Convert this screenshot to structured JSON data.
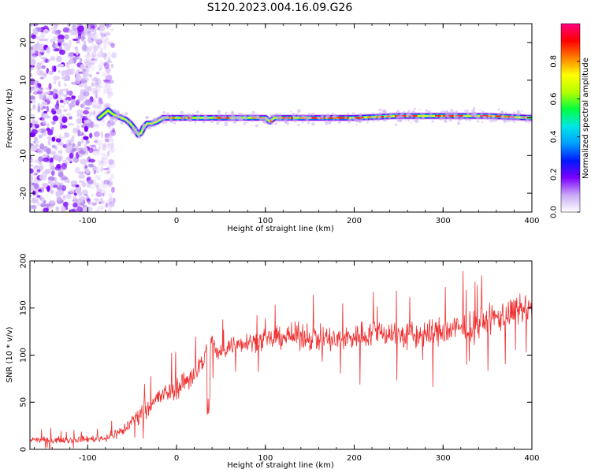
{
  "figure": {
    "title": "S120.2023.004.16.09.G26"
  },
  "chart_data": [
    {
      "type": "heatmap",
      "xlabel": "Height of straight line (km)",
      "ylabel": "Frequency (Hz)",
      "xlim": [
        -165,
        400
      ],
      "ylim": [
        -25,
        25
      ],
      "xticks": [
        -100,
        0,
        100,
        200,
        300,
        400
      ],
      "yticks": [
        -20,
        -10,
        0,
        10,
        20
      ],
      "colorbar": {
        "label": "Normalized spectral amplitude",
        "range": [
          0,
          1
        ],
        "ticks": [
          0.0,
          0.2,
          0.4,
          0.6,
          0.8
        ],
        "tick_labels": [
          "0.0",
          "0.2",
          "0.4",
          "0.6",
          "0.8"
        ],
        "colors": [
          "#ffffff",
          "#c9a8f5",
          "#7b00ff",
          "#0018ff",
          "#00a0ff",
          "#00e6e6",
          "#00ff40",
          "#b4ff00",
          "#ffff00",
          "#ff8000",
          "#ff0000",
          "#ff0080"
        ]
      },
      "ridge": {
        "x": [
          -87,
          -82,
          -77,
          -72,
          -67,
          -62,
          -57,
          -52,
          -47,
          -43,
          -40,
          -37,
          -33,
          -28,
          -22,
          -15,
          0,
          50,
          100,
          105,
          110,
          150,
          200,
          250,
          300,
          350,
          400
        ],
        "y": [
          0,
          1,
          2,
          1,
          0.5,
          0,
          -0.5,
          -1.5,
          -3,
          -4.5,
          -4,
          -2.5,
          -1.5,
          -1.5,
          -1,
          0,
          0,
          0,
          0,
          -1,
          0,
          0,
          0,
          0.5,
          0.5,
          0.5,
          0
        ]
      },
      "noise_region": {
        "x": [
          -165,
          -88
        ],
        "y": [
          -25,
          25
        ]
      }
    },
    {
      "type": "line",
      "xlabel": "Height of straight line (km)",
      "ylabel": "SNR (10 * v/v)",
      "xlim": [
        -165,
        400
      ],
      "ylim": [
        0,
        200
      ],
      "xticks": [
        -100,
        0,
        100,
        200,
        300,
        400
      ],
      "yticks": [
        0,
        50,
        100,
        150,
        200
      ],
      "series": [
        {
          "color": "#f03232",
          "x": [
            -165,
            -120,
            -80,
            -60,
            -50,
            -40,
            -20,
            0,
            20,
            30,
            38,
            40,
            45,
            60,
            80,
            100,
            120,
            150,
            180,
            200,
            230,
            260,
            300,
            330,
            360,
            380,
            400
          ],
          "y": [
            10,
            10,
            12,
            20,
            30,
            40,
            55,
            65,
            80,
            95,
            110,
            120,
            100,
            110,
            115,
            115,
            120,
            120,
            115,
            120,
            125,
            120,
            125,
            130,
            140,
            145,
            150
          ],
          "noise_amplitude": [
            5,
            5,
            6,
            10,
            12,
            14,
            16,
            18,
            20,
            20,
            20,
            20,
            15,
            15,
            15,
            16,
            18,
            22,
            22,
            22,
            22,
            24,
            24,
            24,
            25,
            25,
            25
          ]
        }
      ]
    }
  ]
}
